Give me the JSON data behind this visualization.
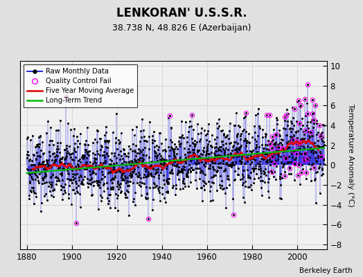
{
  "title": "LENKORAN' U.S.S.R.",
  "subtitle": "38.738 N, 48.826 E (Azerbaijan)",
  "ylabel": "Temperature Anomaly (°C)",
  "attribution": "Berkeley Earth",
  "xlim": [
    1877,
    2013
  ],
  "ylim": [
    -8.5,
    10.5
  ],
  "yticks": [
    -8,
    -6,
    -4,
    -2,
    0,
    2,
    4,
    6,
    8,
    10
  ],
  "xticks": [
    1880,
    1900,
    1920,
    1940,
    1960,
    1980,
    2000
  ],
  "start_year": 1880,
  "end_year": 2011,
  "seed": 42,
  "bg_color": "#e0e0e0",
  "plot_bg_color": "#f0f0f0",
  "line_color": "#0000dd",
  "marker_color": "#000000",
  "ma_color": "#dd0000",
  "trend_color": "#00bb00",
  "qc_color": "#ff00ff",
  "title_fontsize": 12,
  "subtitle_fontsize": 9,
  "label_fontsize": 8,
  "tick_fontsize": 8.5
}
